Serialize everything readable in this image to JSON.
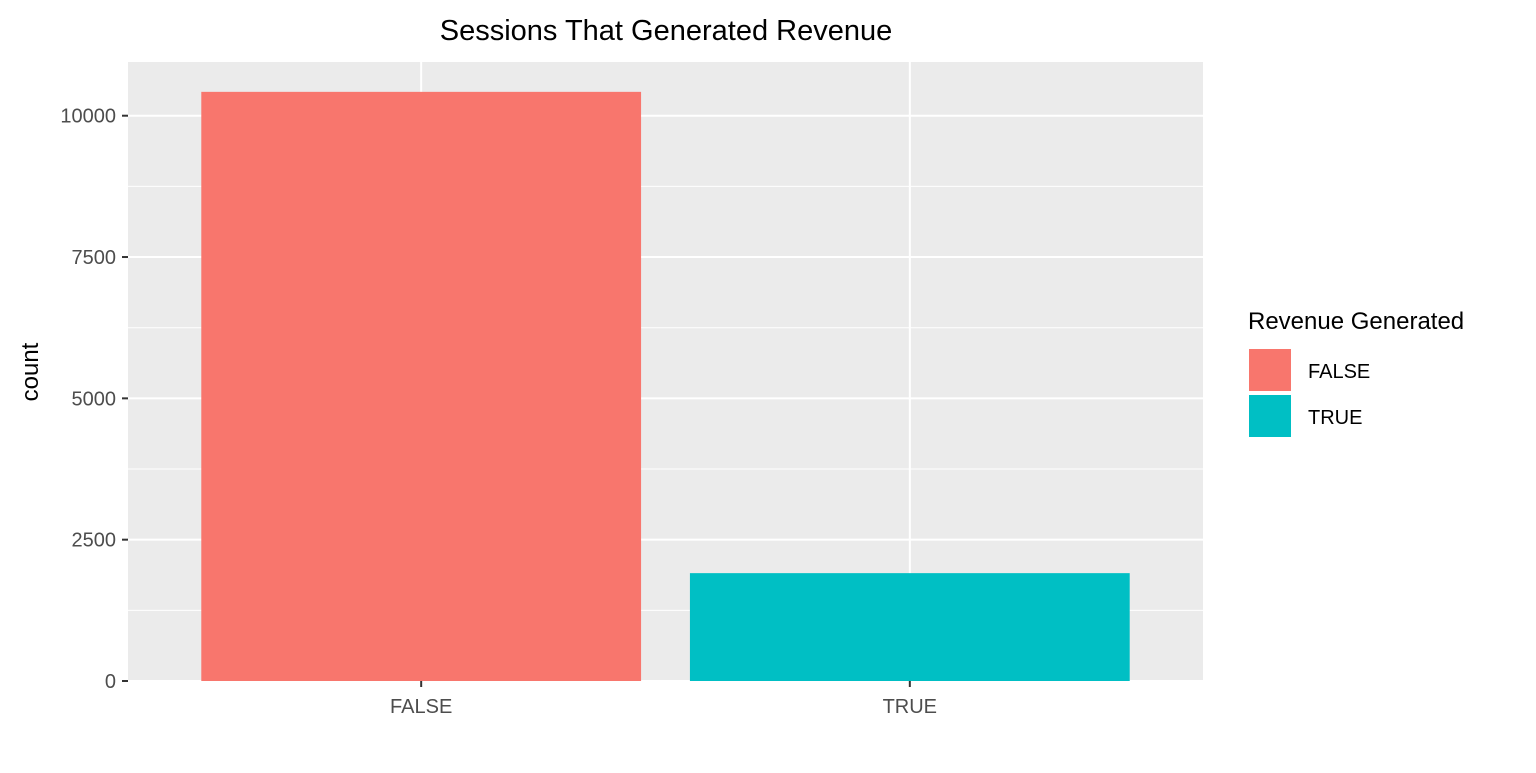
{
  "chart_data": {
    "type": "bar",
    "title": "Sessions That Generated Revenue",
    "xlabel": "",
    "ylabel": "count",
    "categories": [
      "FALSE",
      "TRUE"
    ],
    "values": [
      10422,
      1908
    ],
    "colors": [
      "#F8766D",
      "#00BFC4"
    ],
    "ylim": [
      0,
      10950
    ],
    "yticks": [
      0,
      2500,
      5000,
      7500,
      10000
    ],
    "ytick_labels": [
      "0",
      "2500",
      "5000",
      "7500",
      "10000"
    ],
    "grid": true,
    "panel_background": "#EBEBEB",
    "grid_color": "#FFFFFF",
    "legend": {
      "title": "Revenue Generated",
      "placement": "right",
      "entries": [
        {
          "label": "FALSE",
          "color": "#F8766D"
        },
        {
          "label": "TRUE",
          "color": "#00BFC4"
        }
      ]
    }
  }
}
